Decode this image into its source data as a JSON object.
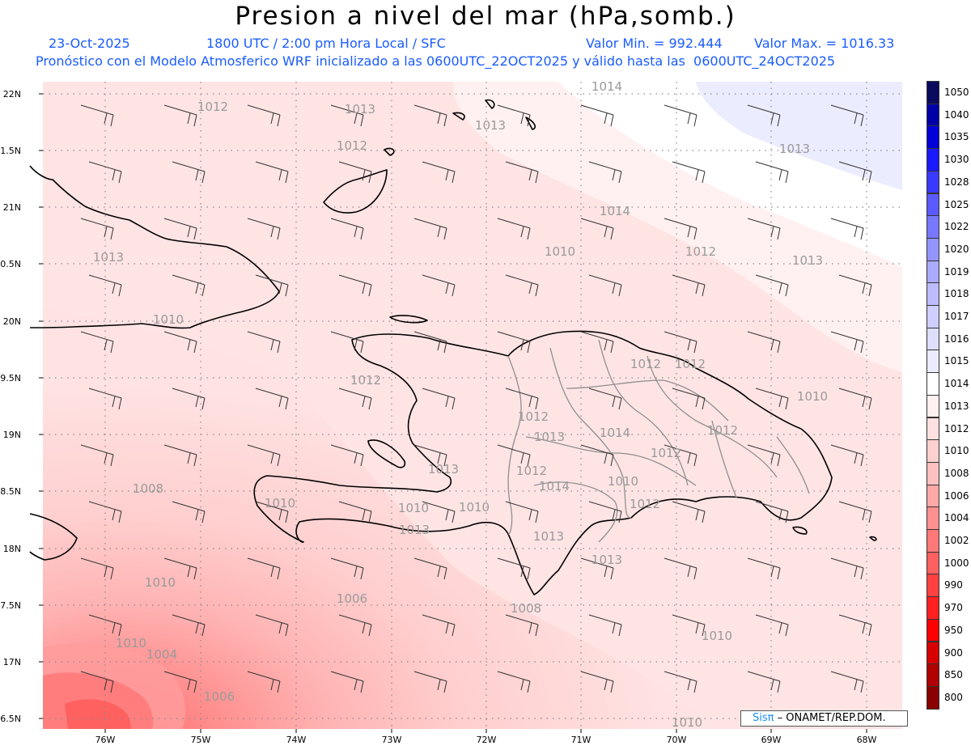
{
  "header": {
    "title": "Presion a nivel del mar (hPa,somb.)",
    "date": "23-Oct-2025",
    "time": "1800 UTC / 2:00 pm Hora Local / SFC",
    "min_label": "Valor Min. = 992.444",
    "max_label": "Valor Max. = 1016.33",
    "forecast_line": "Pronóstico con el Modelo Atmosferico WRF inicializado a las 0600UTC_22OCT2025 y válido hasta las  0600UTC_24OCT2025"
  },
  "map": {
    "lat_labels": [
      "22N",
      "1.5N",
      "21N",
      "0.5N",
      "20N",
      "9.5N",
      "19N",
      "8.5N",
      "18N",
      "7.5N",
      "17N",
      "6.5N"
    ],
    "lon_labels": [
      "76W",
      "75W",
      "74W",
      "73W",
      "72W",
      "71W",
      "70W",
      "69W",
      "68W"
    ],
    "contour_labels": [
      "1014",
      "1012",
      "1013",
      "1013",
      "1012",
      "1013",
      "1014",
      "1010",
      "1012",
      "1013",
      "1013",
      "1010",
      "1012",
      "1012",
      "1012",
      "1010",
      "1012",
      "1013",
      "1014",
      "1012",
      "1012",
      "1013",
      "1012",
      "1014",
      "1010",
      "1008",
      "1010",
      "1010",
      "1010",
      "1012",
      "1013",
      "1013",
      "1013",
      "1010",
      "1006",
      "1008",
      "1010",
      "1004",
      "1006",
      "1010",
      "1010"
    ]
  },
  "legend": {
    "levels": [
      "1050",
      "1040",
      "1035",
      "1030",
      "1028",
      "1025",
      "1022",
      "1020",
      "1019",
      "1018",
      "1017",
      "1016",
      "1015",
      "1014",
      "1013",
      "1012",
      "1010",
      "1008",
      "1006",
      "1004",
      "1002",
      "1000",
      "990",
      "970",
      "950",
      "900",
      "850",
      "800"
    ],
    "colors": [
      "#0a0a5e",
      "#0000a8",
      "#0000d8",
      "#1a1aff",
      "#3a3aff",
      "#5a5aff",
      "#7878ff",
      "#9494ff",
      "#aaaaff",
      "#bcbcff",
      "#cfcfff",
      "#dedeff",
      "#ebebff",
      "#ffffff",
      "#fff0f0",
      "#ffe0e0",
      "#ffd0d0",
      "#ffc0c0",
      "#ffa8a8",
      "#ff9090",
      "#ff7878",
      "#ff6060",
      "#ff4040",
      "#ff2020",
      "#ff0000",
      "#d80000",
      "#b00000",
      "#8a0000"
    ]
  },
  "credit": {
    "brand": "Sisπ",
    "org": "– ONAMET/REP.DOM."
  }
}
